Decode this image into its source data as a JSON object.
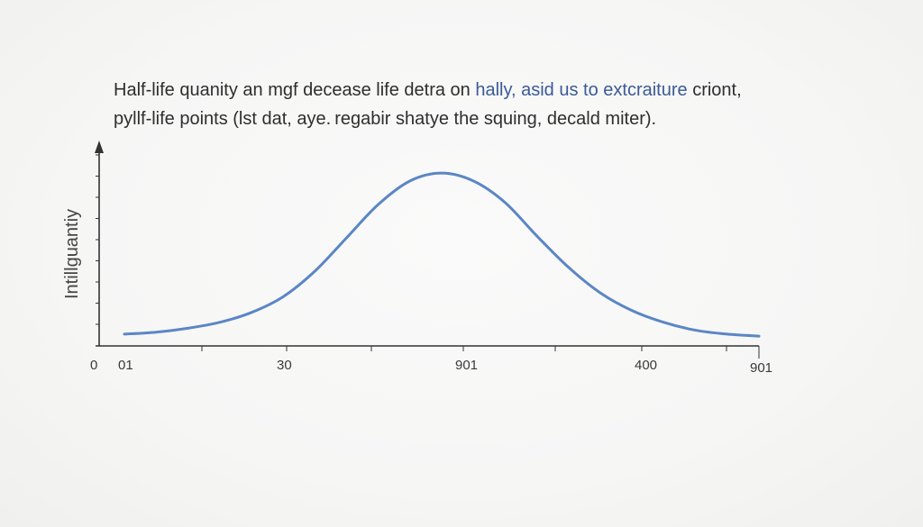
{
  "caption": {
    "line1_part1": "Half-life quanity an mgf decease life detra on ",
    "line1_highlight": "hally, asid us to extcraiture",
    "line1_part2": " criont,",
    "line2": "pyllf-life points (lst dat, aye. regabir shatye the squing, decald miter)."
  },
  "chart_data": {
    "type": "line",
    "ylabel": "Intillguantiy",
    "xlabel": "",
    "tick_labels": [
      "0",
      "01",
      "30",
      "901",
      "400",
      "901"
    ],
    "series": [
      {
        "color": "#5b86c5",
        "points": [
          [
            0,
            0.06
          ],
          [
            0.05,
            0.07
          ],
          [
            0.1,
            0.09
          ],
          [
            0.15,
            0.12
          ],
          [
            0.2,
            0.17
          ],
          [
            0.25,
            0.25
          ],
          [
            0.3,
            0.38
          ],
          [
            0.35,
            0.55
          ],
          [
            0.4,
            0.72
          ],
          [
            0.45,
            0.84
          ],
          [
            0.5,
            0.88
          ],
          [
            0.55,
            0.84
          ],
          [
            0.6,
            0.73
          ],
          [
            0.65,
            0.56
          ],
          [
            0.7,
            0.4
          ],
          [
            0.75,
            0.27
          ],
          [
            0.8,
            0.18
          ],
          [
            0.85,
            0.12
          ],
          [
            0.9,
            0.08
          ],
          [
            0.95,
            0.06
          ],
          [
            1.0,
            0.05
          ]
        ]
      }
    ],
    "grid": false,
    "axis_color": "#333333"
  }
}
